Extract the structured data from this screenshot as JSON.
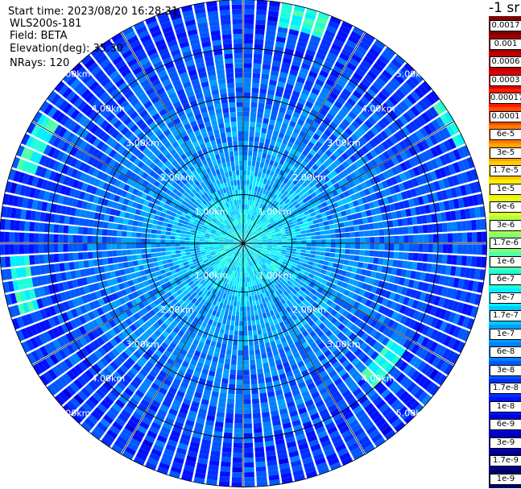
{
  "header": {
    "start_time": "Start time: 2023/08/20 16:28:31",
    "instrument": "WLS200s-181",
    "field": "Field: BETA",
    "elevation": "Elevation(deg): 35.30",
    "nrays": "NRays: 120"
  },
  "colorbar": {
    "unit_label": "-1 sr",
    "labels": [
      "0.0017",
      "0.001",
      "0.0006",
      "0.0003",
      "0.00017",
      "0.0001",
      "6e-5",
      "3e-5",
      "1.7e-5",
      "1e-5",
      "6e-6",
      "3e-6",
      "1.7e-6",
      "1e-6",
      "6e-7",
      "3e-7",
      "1.7e-7",
      "1e-7",
      "6e-8",
      "3e-8",
      "1.7e-8",
      "1e-8",
      "6e-9",
      "3e-9",
      "1.7e-9",
      "1e-9"
    ],
    "colors": [
      "#7f0000",
      "#a00000",
      "#c00000",
      "#e00000",
      "#ff1a00",
      "#ff4a00",
      "#ff7a00",
      "#ffa500",
      "#ffcc00",
      "#ffee00",
      "#e0ff18",
      "#b0ff46",
      "#80ff78",
      "#50ffa8",
      "#20ffd8",
      "#00f0ff",
      "#00c8ff",
      "#00a0ff",
      "#0080ff",
      "#0058ff",
      "#0030ff",
      "#0010ff",
      "#0000dc",
      "#0000b4",
      "#00008c",
      "#000064"
    ]
  },
  "chart_data": {
    "type": "heatmap",
    "projection": "polar (PPI scan)",
    "field": "BETA",
    "n_rays": 120,
    "rlim_km": [
      0,
      5.0
    ],
    "range_rings_km": [
      1,
      2,
      3,
      4,
      5
    ],
    "ring_labels": [
      "1.00km",
      "2.00km",
      "3.00km",
      "4.00km",
      "5.00km"
    ],
    "spokes_deg": [
      0,
      30,
      60,
      90,
      120,
      150,
      180,
      210,
      240,
      270,
      300,
      330
    ],
    "typical_value_by_range_km": [
      {
        "r": 0.5,
        "value": "3e-7"
      },
      {
        "r": 1.5,
        "value": "1e-7"
      },
      {
        "r": 2.5,
        "value": "6e-8"
      },
      {
        "r": 3.5,
        "value": "3e-8"
      },
      {
        "r": 4.5,
        "value": "1.7e-8"
      }
    ],
    "enhanced_regions": [
      {
        "azimuth_deg": 15,
        "range_km": 4.8,
        "value": "1e-6"
      },
      {
        "azimuth_deg": 60,
        "range_km": 5.0,
        "value": "1e-6"
      },
      {
        "azimuth_deg": 130,
        "range_km": 3.8,
        "value": "1e-6"
      },
      {
        "azimuth_deg": 260,
        "range_km": 4.6,
        "value": "1e-6"
      },
      {
        "azimuth_deg": 295,
        "range_km": 4.7,
        "value": "1e-6"
      }
    ]
  }
}
